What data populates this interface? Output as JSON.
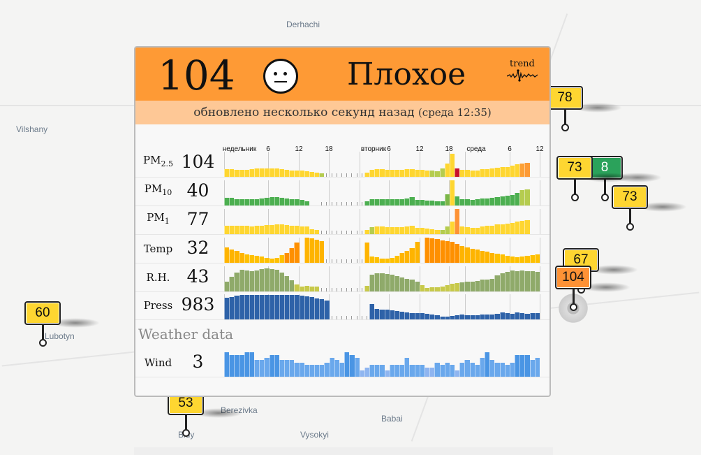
{
  "map": {
    "places": [
      {
        "name": "Derhachi"
      },
      {
        "name": "Vilshany"
      },
      {
        "name": "Lubotyn"
      },
      {
        "name": "Berezivka"
      },
      {
        "name": "Babai"
      },
      {
        "name": "Vysokyi"
      },
      {
        "name": "Bidy"
      }
    ],
    "markers": [
      {
        "value": "78",
        "color": "#fed631"
      },
      {
        "value": "8",
        "color": "#2ba25b"
      },
      {
        "value": "73",
        "color": "#fed631"
      },
      {
        "value": "73",
        "color": "#fed631"
      },
      {
        "value": "67",
        "color": "#fed631"
      },
      {
        "value": "104",
        "color": "#fe9235"
      },
      {
        "value": "60",
        "color": "#fed631"
      },
      {
        "value": "53",
        "color": "#fed631"
      }
    ]
  },
  "panel": {
    "aqi": "104",
    "face_icon": "neutral-face-icon",
    "category": "Плохое",
    "trend_label": "trend",
    "updated": "обновлено несколько секунд назад",
    "updated_time": "(среда 12:35)",
    "header_color": "#fe9a35",
    "sub_color": "#fec896",
    "time_ticks": [
      "недельник",
      "6",
      "12",
      "18",
      "вторник",
      "6",
      "12",
      "18",
      "среда",
      "6",
      "12"
    ],
    "rows": [
      {
        "label": "PM",
        "sub": "2.5",
        "value": "104",
        "color": "#fed631",
        "overrides": {
          "19": "#b5cc4f",
          "21": "#b5cc4f",
          "41": "#b5cc4f",
          "42": "#b5cc4f",
          "43": "#b5cc4f",
          "45": "#fed631",
          "46": "#c8102e",
          "59": "#fda035",
          "60": "#fd9a35",
          "61": "#fd9235"
        },
        "levels": [
          30,
          30,
          28,
          28,
          28,
          30,
          32,
          32,
          34,
          34,
          32,
          30,
          28,
          26,
          26,
          24,
          22,
          20,
          18,
          14,
          null,
          null,
          null,
          null,
          null,
          null,
          null,
          null,
          18,
          28,
          30,
          30,
          28,
          28,
          28,
          28,
          30,
          30,
          28,
          28,
          24,
          24,
          22,
          32,
          52,
          92,
          34,
          28,
          28,
          24,
          26,
          30,
          30,
          32,
          36,
          38,
          40,
          44,
          50,
          54,
          56,
          null,
          null
        ]
      },
      {
        "label": "PM",
        "sub": "10",
        "value": "40",
        "color": "#4caf50",
        "overrides": {
          "45": "#fed631",
          "44": "#7ab648",
          "59": "#b5cc4f",
          "60": "#b5cc4f",
          "61": "#c8d050"
        },
        "levels": [
          30,
          30,
          26,
          26,
          26,
          24,
          26,
          28,
          30,
          32,
          32,
          30,
          28,
          24,
          24,
          22,
          18,
          null,
          null,
          null,
          null,
          null,
          null,
          null,
          null,
          null,
          null,
          null,
          18,
          24,
          26,
          26,
          24,
          24,
          24,
          24,
          28,
          32,
          22,
          22,
          20,
          20,
          18,
          18,
          44,
          100,
          36,
          24,
          26,
          22,
          24,
          28,
          28,
          30,
          34,
          36,
          38,
          42,
          50,
          60,
          64,
          null,
          null
        ]
      },
      {
        "label": "PM",
        "sub": "1",
        "value": "77",
        "color": "#fed631",
        "overrides": {
          "20": "#b5cc4f",
          "21": "#b5cc4f",
          "29": "#b5cc4f",
          "43": "#b5cc4f",
          "44": "#b5cc4f",
          "46": "#fd9235"
        },
        "levels": [
          34,
          34,
          32,
          32,
          32,
          30,
          32,
          34,
          36,
          36,
          38,
          38,
          36,
          34,
          32,
          30,
          30,
          20,
          18,
          null,
          null,
          null,
          null,
          null,
          null,
          null,
          null,
          null,
          16,
          28,
          30,
          30,
          28,
          28,
          28,
          28,
          30,
          32,
          24,
          24,
          22,
          20,
          18,
          18,
          30,
          50,
          100,
          30,
          28,
          24,
          26,
          30,
          32,
          34,
          38,
          40,
          42,
          44,
          50,
          54,
          56,
          null,
          null
        ]
      },
      {
        "label": "Temp",
        "sub": "",
        "value": "32",
        "color": "#feb400",
        "overrides": {
          "40": "#fe9000",
          "41": "#fe9000",
          "42": "#fe9000",
          "43": "#fe9000",
          "44": "#fe9000",
          "45": "#fe9000",
          "46": "#fe9000",
          "11": "#fe9000",
          "12": "#fe9000",
          "13": "#fe9000",
          "14": "#fe9000",
          "15": "#fe9000"
        },
        "levels": [
          60,
          52,
          46,
          40,
          34,
          30,
          28,
          24,
          20,
          18,
          20,
          30,
          40,
          58,
          80,
          null,
          100,
          96,
          92,
          86,
          null,
          null,
          null,
          null,
          null,
          null,
          null,
          null,
          80,
          24,
          22,
          18,
          18,
          20,
          28,
          40,
          48,
          58,
          82,
          null,
          100,
          98,
          94,
          90,
          86,
          82,
          76,
          68,
          60,
          56,
          52,
          48,
          44,
          40,
          36,
          32,
          28,
          24,
          22,
          26,
          28,
          30,
          34
        ]
      },
      {
        "label": "R.H.",
        "sub": "",
        "value": "43",
        "color": "#8faa6a",
        "overrides": {},
        "levels": [
          40,
          58,
          74,
          86,
          84,
          80,
          82,
          88,
          92,
          90,
          86,
          76,
          60,
          44,
          28,
          20,
          22,
          20,
          20,
          null,
          null,
          null,
          null,
          null,
          null,
          null,
          null,
          null,
          22,
          66,
          72,
          72,
          70,
          68,
          60,
          56,
          50,
          46,
          38,
          24,
          14,
          16,
          18,
          20,
          24,
          30,
          32,
          36,
          38,
          40,
          42,
          46,
          48,
          50,
          64,
          72,
          78,
          82,
          80,
          82,
          80,
          80,
          78
        ]
      },
      {
        "label": "Press",
        "sub": "",
        "value": "983",
        "color": "#2e62a8",
        "overrides": {},
        "levels": [
          86,
          90,
          94,
          96,
          96,
          96,
          96,
          96,
          96,
          96,
          96,
          98,
          98,
          98,
          96,
          94,
          92,
          88,
          84,
          80,
          76,
          null,
          null,
          null,
          null,
          null,
          null,
          null,
          null,
          60,
          42,
          40,
          38,
          36,
          34,
          30,
          28,
          26,
          24,
          24,
          22,
          20,
          16,
          12,
          12,
          14,
          16,
          20,
          18,
          16,
          18,
          20,
          20,
          20,
          22,
          28,
          24,
          22,
          28,
          24,
          22,
          24,
          24
        ]
      },
      {
        "label": "Wind",
        "sub": "",
        "value": "3",
        "color": "#6aa8ec",
        "overrides": {},
        "levels": [
          96,
          86,
          86,
          86,
          96,
          96,
          66,
          66,
          76,
          86,
          86,
          66,
          66,
          66,
          56,
          56,
          46,
          46,
          46,
          46,
          56,
          76,
          66,
          56,
          96,
          86,
          76,
          26,
          36,
          46,
          46,
          46,
          26,
          46,
          46,
          46,
          76,
          46,
          46,
          46,
          36,
          36,
          56,
          46,
          56,
          46,
          26,
          56,
          66,
          56,
          46,
          76,
          96,
          66,
          56,
          56,
          46,
          56,
          86,
          86,
          86,
          66,
          76
        ]
      }
    ],
    "weather_title": "Weather data"
  }
}
